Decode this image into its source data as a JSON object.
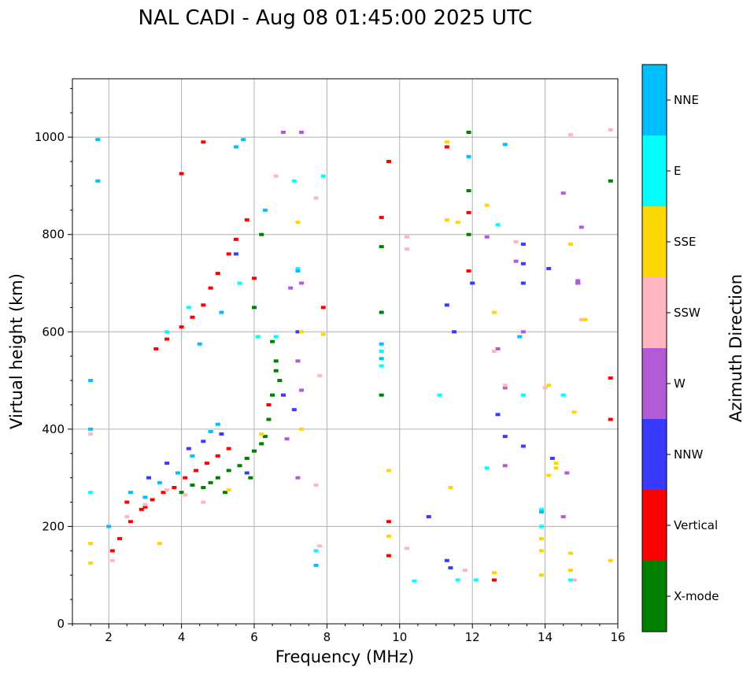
{
  "chart_data": {
    "type": "scatter",
    "title": "NAL CADI - Aug 08 01:45:00 2025 UTC",
    "xlabel": "Frequency (MHz)",
    "ylabel": "Virtual height (km)",
    "xlim": [
      1,
      16
    ],
    "ylim": [
      0,
      1120
    ],
    "x_ticks": [
      "2",
      "4",
      "6",
      "8",
      "10",
      "12",
      "14",
      "16"
    ],
    "y_ticks": [
      "0",
      "200",
      "400",
      "600",
      "800",
      "1000"
    ],
    "grid": true,
    "colorbar": {
      "label": "Azimuth Direction",
      "position": "right",
      "categories": [
        {
          "name": "X-mode",
          "color": "#008000"
        },
        {
          "name": "Vertical",
          "color": "#ff0000"
        },
        {
          "name": "NNW",
          "color": "#3a3aff"
        },
        {
          "name": "W",
          "color": "#b45ad6"
        },
        {
          "name": "SSW",
          "color": "#ffb6c1"
        },
        {
          "name": "SSE",
          "color": "#ffd700"
        },
        {
          "name": "E",
          "color": "#00ffff"
        },
        {
          "name": "NNE",
          "color": "#00bfff"
        }
      ]
    },
    "series": [
      {
        "name": "X-mode",
        "color": "#008000",
        "points": [
          [
            4.0,
            270
          ],
          [
            4.3,
            285
          ],
          [
            4.8,
            290
          ],
          [
            5.0,
            300
          ],
          [
            5.3,
            315
          ],
          [
            5.6,
            325
          ],
          [
            5.8,
            340
          ],
          [
            6.0,
            355
          ],
          [
            6.2,
            370
          ],
          [
            6.3,
            385
          ],
          [
            6.4,
            420
          ],
          [
            6.5,
            470
          ],
          [
            6.6,
            520
          ],
          [
            6.6,
            540
          ],
          [
            6.0,
            650
          ],
          [
            6.2,
            800
          ],
          [
            6.5,
            580
          ],
          [
            6.7,
            500
          ],
          [
            9.5,
            470
          ],
          [
            9.5,
            640
          ],
          [
            9.5,
            775
          ],
          [
            11.9,
            800
          ],
          [
            11.9,
            890
          ],
          [
            11.9,
            1010
          ],
          [
            15.8,
            910
          ],
          [
            4.6,
            280
          ],
          [
            5.2,
            270
          ],
          [
            5.9,
            300
          ]
        ]
      },
      {
        "name": "Vertical",
        "color": "#ff0000",
        "points": [
          [
            2.1,
            150
          ],
          [
            2.3,
            175
          ],
          [
            2.6,
            210
          ],
          [
            2.9,
            235
          ],
          [
            3.2,
            255
          ],
          [
            3.5,
            270
          ],
          [
            3.8,
            280
          ],
          [
            4.1,
            300
          ],
          [
            4.4,
            315
          ],
          [
            4.7,
            330
          ],
          [
            5.0,
            345
          ],
          [
            5.3,
            360
          ],
          [
            3.3,
            565
          ],
          [
            3.6,
            585
          ],
          [
            4.0,
            610
          ],
          [
            4.3,
            630
          ],
          [
            4.6,
            655
          ],
          [
            4.8,
            690
          ],
          [
            5.0,
            720
          ],
          [
            5.3,
            760
          ],
          [
            5.5,
            790
          ],
          [
            5.8,
            830
          ],
          [
            4.0,
            925
          ],
          [
            4.6,
            990
          ],
          [
            6.0,
            710
          ],
          [
            6.4,
            450
          ],
          [
            9.5,
            835
          ],
          [
            9.7,
            950
          ],
          [
            9.7,
            140
          ],
          [
            9.7,
            210
          ],
          [
            11.3,
            980
          ],
          [
            11.9,
            725
          ],
          [
            11.9,
            845
          ],
          [
            12.6,
            90
          ],
          [
            15.8,
            505
          ],
          [
            15.8,
            420
          ],
          [
            7.9,
            650
          ],
          [
            2.5,
            250
          ],
          [
            3.0,
            240
          ]
        ]
      },
      {
        "name": "NNW",
        "color": "#3a3aff",
        "points": [
          [
            3.1,
            300
          ],
          [
            3.6,
            330
          ],
          [
            4.2,
            360
          ],
          [
            4.6,
            375
          ],
          [
            5.1,
            390
          ],
          [
            5.5,
            760
          ],
          [
            6.8,
            470
          ],
          [
            7.1,
            440
          ],
          [
            7.2,
            600
          ],
          [
            11.3,
            655
          ],
          [
            11.5,
            600
          ],
          [
            12.0,
            700
          ],
          [
            12.7,
            430
          ],
          [
            12.9,
            385
          ],
          [
            13.4,
            780
          ],
          [
            13.4,
            740
          ],
          [
            13.4,
            700
          ],
          [
            13.4,
            365
          ],
          [
            14.1,
            730
          ],
          [
            14.2,
            340
          ],
          [
            14.9,
            700
          ],
          [
            11.3,
            130
          ],
          [
            11.4,
            115
          ],
          [
            10.8,
            220
          ],
          [
            5.8,
            310
          ]
        ]
      },
      {
        "name": "W",
        "color": "#b45ad6",
        "points": [
          [
            6.8,
            1010
          ],
          [
            7.3,
            1010
          ],
          [
            7.0,
            690
          ],
          [
            7.2,
            540
          ],
          [
            7.3,
            480
          ],
          [
            7.3,
            700
          ],
          [
            12.4,
            795
          ],
          [
            12.7,
            565
          ],
          [
            12.9,
            485
          ],
          [
            12.9,
            325
          ],
          [
            13.2,
            745
          ],
          [
            13.4,
            600
          ],
          [
            14.5,
            885
          ],
          [
            14.5,
            220
          ],
          [
            14.6,
            310
          ],
          [
            15.0,
            815
          ],
          [
            14.9,
            705
          ],
          [
            14.9,
            700
          ],
          [
            7.2,
            300
          ],
          [
            6.9,
            380
          ]
        ]
      },
      {
        "name": "SSW",
        "color": "#ffb6c1",
        "points": [
          [
            1.5,
            390
          ],
          [
            2.1,
            130
          ],
          [
            2.5,
            220
          ],
          [
            3.0,
            245
          ],
          [
            3.6,
            275
          ],
          [
            4.1,
            265
          ],
          [
            4.6,
            250
          ],
          [
            6.6,
            920
          ],
          [
            7.8,
            160
          ],
          [
            7.8,
            510
          ],
          [
            10.2,
            795
          ],
          [
            10.2,
            770
          ],
          [
            10.2,
            155
          ],
          [
            11.8,
            110
          ],
          [
            12.6,
            560
          ],
          [
            12.9,
            490
          ],
          [
            13.2,
            785
          ],
          [
            14.0,
            485
          ],
          [
            14.7,
            1005
          ],
          [
            14.8,
            90
          ],
          [
            15.0,
            625
          ],
          [
            15.8,
            1015
          ],
          [
            7.7,
            875
          ],
          [
            7.7,
            285
          ]
        ]
      },
      {
        "name": "SSE",
        "color": "#ffd700",
        "points": [
          [
            1.5,
            125
          ],
          [
            1.5,
            165
          ],
          [
            3.4,
            165
          ],
          [
            7.2,
            825
          ],
          [
            7.3,
            600
          ],
          [
            7.3,
            400
          ],
          [
            7.9,
            595
          ],
          [
            9.7,
            315
          ],
          [
            9.7,
            180
          ],
          [
            11.3,
            990
          ],
          [
            11.3,
            830
          ],
          [
            11.4,
            280
          ],
          [
            11.6,
            825
          ],
          [
            12.4,
            860
          ],
          [
            12.6,
            640
          ],
          [
            12.6,
            105
          ],
          [
            13.9,
            175
          ],
          [
            13.9,
            150
          ],
          [
            13.9,
            100
          ],
          [
            14.1,
            490
          ],
          [
            14.1,
            305
          ],
          [
            14.3,
            330
          ],
          [
            14.3,
            320
          ],
          [
            14.7,
            780
          ],
          [
            14.7,
            145
          ],
          [
            14.7,
            110
          ],
          [
            14.8,
            435
          ],
          [
            15.1,
            625
          ],
          [
            15.8,
            130
          ],
          [
            6.2,
            390
          ],
          [
            5.3,
            275
          ]
        ]
      },
      {
        "name": "E",
        "color": "#00ffff",
        "points": [
          [
            1.5,
            270
          ],
          [
            3.6,
            600
          ],
          [
            4.2,
            650
          ],
          [
            5.6,
            700
          ],
          [
            6.6,
            590
          ],
          [
            7.2,
            730
          ],
          [
            7.9,
            920
          ],
          [
            7.7,
            150
          ],
          [
            9.5,
            560
          ],
          [
            9.5,
            530
          ],
          [
            10.4,
            88
          ],
          [
            11.1,
            470
          ],
          [
            11.6,
            90
          ],
          [
            12.1,
            90
          ],
          [
            12.4,
            320
          ],
          [
            12.7,
            820
          ],
          [
            13.4,
            470
          ],
          [
            13.9,
            235
          ],
          [
            13.9,
            200
          ],
          [
            14.5,
            470
          ],
          [
            14.7,
            90
          ],
          [
            7.1,
            910
          ],
          [
            6.1,
            590
          ]
        ]
      },
      {
        "name": "NNE",
        "color": "#00bfff",
        "points": [
          [
            1.5,
            500
          ],
          [
            1.5,
            400
          ],
          [
            1.7,
            995
          ],
          [
            1.7,
            910
          ],
          [
            2.0,
            200
          ],
          [
            2.6,
            270
          ],
          [
            3.0,
            260
          ],
          [
            3.4,
            290
          ],
          [
            3.9,
            310
          ],
          [
            4.3,
            345
          ],
          [
            4.8,
            395
          ],
          [
            5.0,
            410
          ],
          [
            5.5,
            980
          ],
          [
            5.7,
            995
          ],
          [
            6.3,
            850
          ],
          [
            7.2,
            725
          ],
          [
            9.5,
            575
          ],
          [
            9.5,
            545
          ],
          [
            11.9,
            960
          ],
          [
            12.9,
            985
          ],
          [
            13.3,
            590
          ],
          [
            13.9,
            230
          ],
          [
            7.7,
            120
          ],
          [
            4.5,
            575
          ],
          [
            5.1,
            640
          ]
        ]
      }
    ]
  }
}
